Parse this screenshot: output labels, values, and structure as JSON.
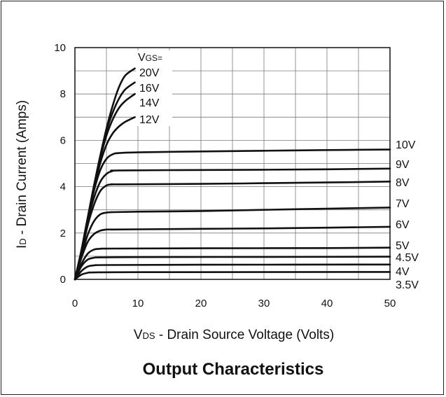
{
  "chart_data": {
    "type": "line",
    "title": "Output Characteristics",
    "xlabel_prefix": "V",
    "xlabel_sub": "DS",
    "xlabel_rest": " - Drain Source Voltage (Volts)",
    "ylabel_prefix": "I",
    "ylabel_sub": "D",
    "ylabel_rest": " - Drain Current (Amps)",
    "legend_prefix": "V",
    "legend_sub": "GS=",
    "xlim": [
      0,
      50
    ],
    "ylim": [
      0,
      10
    ],
    "xticks": [
      "0",
      "10",
      "20",
      "30",
      "40",
      "50"
    ],
    "yticks": [
      "0",
      "2",
      "4",
      "6",
      "8",
      "10"
    ],
    "grid": true,
    "series": [
      {
        "name": "20V",
        "points": [
          [
            0,
            0
          ],
          [
            1,
            1.2
          ],
          [
            2,
            2.6
          ],
          [
            3,
            4.0
          ],
          [
            4,
            5.3
          ],
          [
            5,
            6.5
          ],
          [
            6,
            7.5
          ],
          [
            7,
            8.3
          ],
          [
            8,
            8.8
          ],
          [
            9.5,
            9.1
          ]
        ]
      },
      {
        "name": "16V",
        "points": [
          [
            0,
            0
          ],
          [
            1,
            1.2
          ],
          [
            2,
            2.6
          ],
          [
            3,
            4.0
          ],
          [
            4,
            5.3
          ],
          [
            5,
            6.4
          ],
          [
            6,
            7.2
          ],
          [
            7,
            7.8
          ],
          [
            8,
            8.2
          ],
          [
            9.5,
            8.5
          ]
        ]
      },
      {
        "name": "14V",
        "points": [
          [
            0,
            0
          ],
          [
            1,
            1.2
          ],
          [
            2,
            2.6
          ],
          [
            3,
            4.0
          ],
          [
            4,
            5.2
          ],
          [
            5,
            6.2
          ],
          [
            6,
            6.9
          ],
          [
            7,
            7.4
          ],
          [
            8,
            7.7
          ],
          [
            9.5,
            8.0
          ]
        ]
      },
      {
        "name": "12V",
        "points": [
          [
            0,
            0
          ],
          [
            1,
            1.2
          ],
          [
            2,
            2.6
          ],
          [
            3,
            3.9
          ],
          [
            4,
            5.0
          ],
          [
            5,
            5.8
          ],
          [
            6,
            6.3
          ],
          [
            7,
            6.6
          ],
          [
            8,
            6.8
          ],
          [
            9.5,
            7.0
          ]
        ]
      },
      {
        "name": "10V",
        "points": [
          [
            0,
            0
          ],
          [
            1,
            1.2
          ],
          [
            2,
            2.6
          ],
          [
            3,
            3.8
          ],
          [
            4,
            4.7
          ],
          [
            5,
            5.2
          ],
          [
            6,
            5.4
          ],
          [
            7,
            5.45
          ],
          [
            10,
            5.48
          ],
          [
            20,
            5.52
          ],
          [
            30,
            5.55
          ],
          [
            40,
            5.58
          ],
          [
            50,
            5.6
          ]
        ]
      },
      {
        "name": "9V",
        "points": [
          [
            0,
            0
          ],
          [
            1,
            1.2
          ],
          [
            2,
            2.5
          ],
          [
            3,
            3.5
          ],
          [
            4,
            4.2
          ],
          [
            5,
            4.55
          ],
          [
            6,
            4.68
          ],
          [
            7,
            4.7
          ],
          [
            20,
            4.72
          ],
          [
            30,
            4.73
          ],
          [
            40,
            4.75
          ],
          [
            50,
            4.78
          ]
        ]
      },
      {
        "name": "8V",
        "points": [
          [
            0,
            0
          ],
          [
            1,
            1.1
          ],
          [
            2,
            2.3
          ],
          [
            3,
            3.2
          ],
          [
            4,
            3.8
          ],
          [
            5,
            4.05
          ],
          [
            6,
            4.1
          ],
          [
            7,
            4.1
          ],
          [
            20,
            4.12
          ],
          [
            30,
            4.15
          ],
          [
            40,
            4.18
          ],
          [
            50,
            4.22
          ]
        ]
      },
      {
        "name": "7V",
        "points": [
          [
            0,
            0
          ],
          [
            1,
            1.0
          ],
          [
            2,
            1.9
          ],
          [
            3,
            2.5
          ],
          [
            4,
            2.8
          ],
          [
            5,
            2.88
          ],
          [
            6,
            2.9
          ],
          [
            10,
            2.92
          ],
          [
            20,
            2.95
          ],
          [
            30,
            3.0
          ],
          [
            40,
            3.05
          ],
          [
            50,
            3.1
          ]
        ]
      },
      {
        "name": "6V",
        "points": [
          [
            0,
            0
          ],
          [
            1,
            0.9
          ],
          [
            2,
            1.6
          ],
          [
            3,
            1.95
          ],
          [
            4,
            2.1
          ],
          [
            5,
            2.15
          ],
          [
            6,
            2.15
          ],
          [
            10,
            2.16
          ],
          [
            20,
            2.18
          ],
          [
            30,
            2.2
          ],
          [
            40,
            2.23
          ],
          [
            50,
            2.27
          ]
        ]
      },
      {
        "name": "5V",
        "points": [
          [
            0,
            0
          ],
          [
            1,
            0.65
          ],
          [
            2,
            1.1
          ],
          [
            3,
            1.28
          ],
          [
            4,
            1.32
          ],
          [
            6,
            1.33
          ],
          [
            20,
            1.34
          ],
          [
            40,
            1.35
          ],
          [
            50,
            1.37
          ]
        ]
      },
      {
        "name": "4.5V",
        "points": [
          [
            0,
            0
          ],
          [
            1,
            0.55
          ],
          [
            2,
            0.85
          ],
          [
            3,
            0.93
          ],
          [
            4,
            0.95
          ],
          [
            10,
            0.96
          ],
          [
            30,
            0.97
          ],
          [
            50,
            0.98
          ]
        ]
      },
      {
        "name": "4V",
        "points": [
          [
            0,
            0
          ],
          [
            1,
            0.35
          ],
          [
            2,
            0.55
          ],
          [
            3,
            0.6
          ],
          [
            5,
            0.62
          ],
          [
            20,
            0.63
          ],
          [
            50,
            0.64
          ]
        ]
      },
      {
        "name": "3.5V",
        "points": [
          [
            0,
            0
          ],
          [
            1,
            0.2
          ],
          [
            2,
            0.28
          ],
          [
            3,
            0.3
          ],
          [
            10,
            0.31
          ],
          [
            50,
            0.32
          ]
        ]
      }
    ]
  }
}
